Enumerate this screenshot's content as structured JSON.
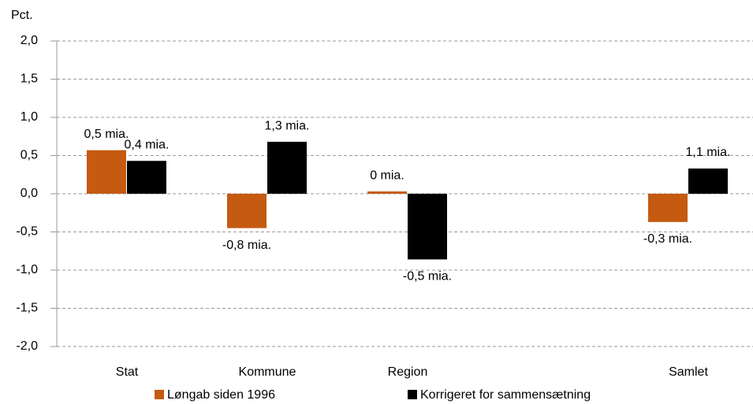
{
  "chart_data": {
    "type": "bar",
    "y_label": "Pct.",
    "categories": [
      "Stat",
      "Kommune",
      "Region",
      null,
      "Samlet"
    ],
    "series": [
      {
        "name": "Løngab siden 1996",
        "color": "#c55a11",
        "values": [
          0.57,
          -0.45,
          0.03,
          null,
          -0.37
        ],
        "data_labels": [
          "0,5 mia.",
          "-0,8 mia.",
          "0 mia.",
          null,
          "-0,3 mia."
        ]
      },
      {
        "name": "Korrigeret for sammensætning",
        "color": "#000000",
        "values": [
          0.43,
          0.68,
          -0.86,
          null,
          0.33
        ],
        "data_labels": [
          "0,4 mia.",
          "1,3 mia.",
          "-0,5 mia.",
          null,
          "1,1 mia."
        ]
      }
    ],
    "ylim": [
      -2,
      2
    ],
    "yticks": [
      {
        "value": -2,
        "label": "-2,0"
      },
      {
        "value": -1.5,
        "label": "-1,5"
      },
      {
        "value": -1,
        "label": "-1,0"
      },
      {
        "value": -0.5,
        "label": "-0,5"
      },
      {
        "value": 0,
        "label": "0,0"
      },
      {
        "value": 0.5,
        "label": "0,5"
      },
      {
        "value": 1,
        "label": "1,0"
      },
      {
        "value": 1.5,
        "label": "1,5"
      },
      {
        "value": 2,
        "label": "2,0"
      }
    ],
    "grid": true,
    "legend": "bottom"
  }
}
